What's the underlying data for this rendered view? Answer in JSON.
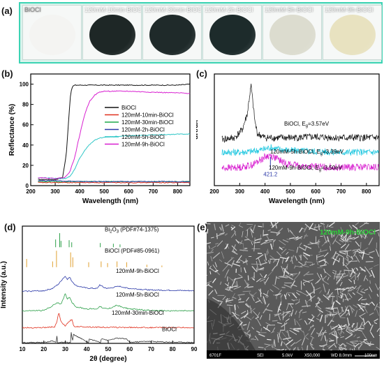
{
  "panels": {
    "a": "(a)",
    "b": "(b)",
    "c": "(c)",
    "d": "(d)",
    "e": "(e)"
  },
  "photos": [
    {
      "label": "BiOCl",
      "color": "#f4f4f2"
    },
    {
      "label": "120mM-10min-BiOCl",
      "color": "#1e2726"
    },
    {
      "label": "120mM-30min-BiOCl",
      "color": "#1f2a2a"
    },
    {
      "label": "120mM-2h-BiOCl",
      "color": "#1d2b2b"
    },
    {
      "label": "120mM-5h-BiOCl",
      "color": "#dcdccf"
    },
    {
      "label": "120mM-9h-BiOCl",
      "color": "#e8e2c0"
    }
  ],
  "sem": {
    "overlay": "120mM-9h-BiOCl",
    "footer": [
      "6701F",
      "SEI",
      "5.0kV",
      "X50,000",
      "WD 8.0mm",
      "100nm"
    ]
  },
  "chart_data": [
    {
      "id": "b",
      "type": "line",
      "xlabel": "Wavelength (nm)",
      "ylabel": "Reflectance (%)",
      "xlim": [
        200,
        850
      ],
      "ylim": [
        0,
        110
      ],
      "xticks": [
        200,
        300,
        400,
        500,
        600,
        700,
        800
      ],
      "yticks": [
        0,
        20,
        40,
        60,
        80,
        100
      ],
      "legend_position": "center-right",
      "series": [
        {
          "name": "BiOCl",
          "color": "#111111",
          "x": [
            230,
            300,
            330,
            345,
            355,
            362,
            368,
            372,
            380,
            400,
            500,
            600,
            700,
            800,
            850
          ],
          "y": [
            6,
            6,
            8,
            30,
            65,
            88,
            96,
            98,
            99,
            99,
            99,
            99,
            99,
            99,
            100
          ]
        },
        {
          "name": "120mM-10min-BiOCl",
          "color": "#e0301e",
          "x": [
            230,
            300,
            400,
            500,
            600,
            700,
            850
          ],
          "y": [
            3,
            3,
            3,
            3,
            3,
            3,
            3
          ]
        },
        {
          "name": "120mM-30min-BiOCl",
          "color": "#1fa84a",
          "x": [
            230,
            300,
            400,
            500,
            600,
            700,
            850
          ],
          "y": [
            4,
            4,
            4,
            4,
            4,
            4,
            4
          ]
        },
        {
          "name": "120mM-2h-BiOCl",
          "color": "#2b39a8",
          "x": [
            230,
            300,
            400,
            500,
            600,
            700,
            850
          ],
          "y": [
            5,
            5,
            4,
            4,
            4,
            4,
            4
          ]
        },
        {
          "name": "120mM-5h-BiOCl",
          "color": "#2fc7c7",
          "x": [
            230,
            300,
            340,
            360,
            380,
            400,
            430,
            460,
            500,
            600,
            700,
            850
          ],
          "y": [
            8,
            7,
            7,
            9,
            16,
            27,
            38,
            45,
            48,
            49,
            50,
            51
          ]
        },
        {
          "name": "120mM-9h-BiOCl",
          "color": "#d81fd0",
          "x": [
            230,
            300,
            340,
            360,
            380,
            400,
            420,
            440,
            460,
            480,
            500,
            600,
            700,
            850
          ],
          "y": [
            8,
            7,
            8,
            14,
            28,
            50,
            70,
            83,
            89,
            92,
            93,
            93,
            92,
            91
          ]
        }
      ]
    },
    {
      "id": "c",
      "type": "line",
      "xlabel": "Wavelength (nm)",
      "ylabel": "dR/dλ",
      "xlim": [
        200,
        850
      ],
      "xticks": [
        200,
        300,
        400,
        500,
        600,
        700,
        800
      ],
      "series": [
        {
          "name": "BiOCl, E_g=3.57eV",
          "color": "#111111",
          "x": [
            230,
            280,
            310,
            330,
            340,
            345,
            350,
            360,
            370,
            400,
            500,
            600,
            700,
            850
          ],
          "y": [
            0.58,
            0.6,
            0.7,
            0.9,
            1.15,
            1.25,
            1.1,
            0.8,
            0.65,
            0.6,
            0.6,
            0.61,
            0.6,
            0.6
          ]
        },
        {
          "name": "120mM-5h-BiOCl, E_g=3.39eV",
          "color": "#22c8e0",
          "x": [
            230,
            300,
            350,
            400,
            421,
            450,
            500,
            600,
            700,
            850
          ],
          "y": [
            0.42,
            0.42,
            0.43,
            0.46,
            0.48,
            0.46,
            0.44,
            0.43,
            0.42,
            0.42
          ]
        },
        {
          "name": "120mM-9h-BiOCl, E_g=3.50eV",
          "color": "#d81fd0",
          "x": [
            230,
            300,
            350,
            380,
            400,
            421,
            440,
            480,
            550,
            700,
            850
          ],
          "y": [
            0.22,
            0.23,
            0.26,
            0.32,
            0.36,
            0.38,
            0.35,
            0.28,
            0.24,
            0.23,
            0.23
          ]
        }
      ],
      "annotations": [
        {
          "text": "BiOCl, E",
          "sub": "g",
          "rest": "=3.57eV"
        },
        {
          "text": "120mM-5h-BiOCl, E",
          "sub": "g",
          "rest": "=3.39eV"
        },
        {
          "text": "120mM-9h-BiOCl, E",
          "sub": "g",
          "rest": "=3.50eV"
        },
        {
          "text": "421.2"
        }
      ]
    },
    {
      "id": "d",
      "type": "line",
      "xlabel": "2θ (degree)",
      "ylabel": "Intensity (a.u.)",
      "xlim": [
        10,
        90
      ],
      "xticks": [
        10,
        20,
        30,
        40,
        50,
        60,
        70,
        80,
        90
      ],
      "series": [
        {
          "name": "Bi2O3 (PDF#74-1375)",
          "color": "#2ea04a",
          "sticks": [
            [
              25.5,
              0.55
            ],
            [
              27.4,
              1.0
            ],
            [
              28.0,
              0.45
            ],
            [
              31.8,
              0.5
            ],
            [
              33.0,
              0.35
            ],
            [
              46.3,
              0.3
            ],
            [
              52.4,
              0.25
            ],
            [
              55.5,
              0.2
            ]
          ]
        },
        {
          "name": "BiOCl (PDF#85-0961)",
          "color": "#e0a030",
          "sticks": [
            [
              12.0,
              0.5
            ],
            [
              24.1,
              0.35
            ],
            [
              25.9,
              1.0
            ],
            [
              32.5,
              0.9
            ],
            [
              33.5,
              0.6
            ],
            [
              40.9,
              0.3
            ],
            [
              46.7,
              0.35
            ],
            [
              49.7,
              0.25
            ],
            [
              54.1,
              0.35
            ],
            [
              58.6,
              0.3
            ],
            [
              68.0,
              0.15
            ],
            [
              75.0,
              0.1
            ]
          ]
        },
        {
          "name": "120mM-9h-BiOCl",
          "color": "#2b39a8",
          "x": [
            10,
            20,
            24,
            27,
            29,
            30,
            31,
            32,
            33,
            35,
            40,
            45,
            46,
            48,
            50,
            55,
            60,
            70,
            80,
            90
          ],
          "y": [
            0.15,
            0.18,
            0.3,
            0.55,
            0.85,
            0.95,
            0.8,
            0.9,
            0.7,
            0.45,
            0.32,
            0.3,
            0.5,
            0.35,
            0.3,
            0.42,
            0.3,
            0.22,
            0.2,
            0.18
          ]
        },
        {
          "name": "120mM-5h-BiOCl",
          "color": "#2ea04a",
          "x": [
            10,
            20,
            24,
            26,
            28,
            30,
            31,
            32,
            33,
            35,
            40,
            45,
            46,
            48,
            50,
            54,
            56,
            60,
            70,
            80,
            90
          ],
          "y": [
            0.1,
            0.12,
            0.35,
            0.5,
            0.45,
            0.95,
            0.7,
            0.8,
            0.55,
            0.3,
            0.2,
            0.2,
            0.35,
            0.22,
            0.2,
            0.38,
            0.3,
            0.2,
            0.12,
            0.1,
            0.1
          ]
        },
        {
          "name": "120mM-30min-BiOCl",
          "color": "#e0301e",
          "x": [
            10,
            20,
            25,
            26,
            27,
            28,
            30,
            32,
            33,
            34,
            40,
            46,
            50,
            60,
            70,
            80,
            90
          ],
          "y": [
            0.05,
            0.06,
            0.1,
            0.3,
            0.9,
            0.35,
            0.15,
            0.4,
            0.5,
            0.12,
            0.1,
            0.08,
            0.07,
            0.07,
            0.06,
            0.06,
            0.06
          ]
        },
        {
          "name": "BiOCl",
          "color": "#333333",
          "x": [
            10,
            11.9,
            12,
            12.1,
            20,
            24,
            25.8,
            26,
            26.2,
            32.4,
            32.6,
            33.4,
            33.6,
            40.8,
            41,
            46.6,
            46.8,
            49.7,
            54,
            58.6,
            60,
            68,
            75,
            90
          ],
          "y": [
            0.02,
            0.02,
            0.45,
            0.02,
            0.02,
            0.12,
            0.02,
            0.9,
            0.02,
            0.02,
            0.85,
            0.02,
            0.55,
            0.02,
            0.25,
            0.02,
            0.3,
            0.15,
            0.3,
            0.25,
            0.03,
            0.1,
            0.06,
            0.02
          ]
        }
      ]
    }
  ]
}
